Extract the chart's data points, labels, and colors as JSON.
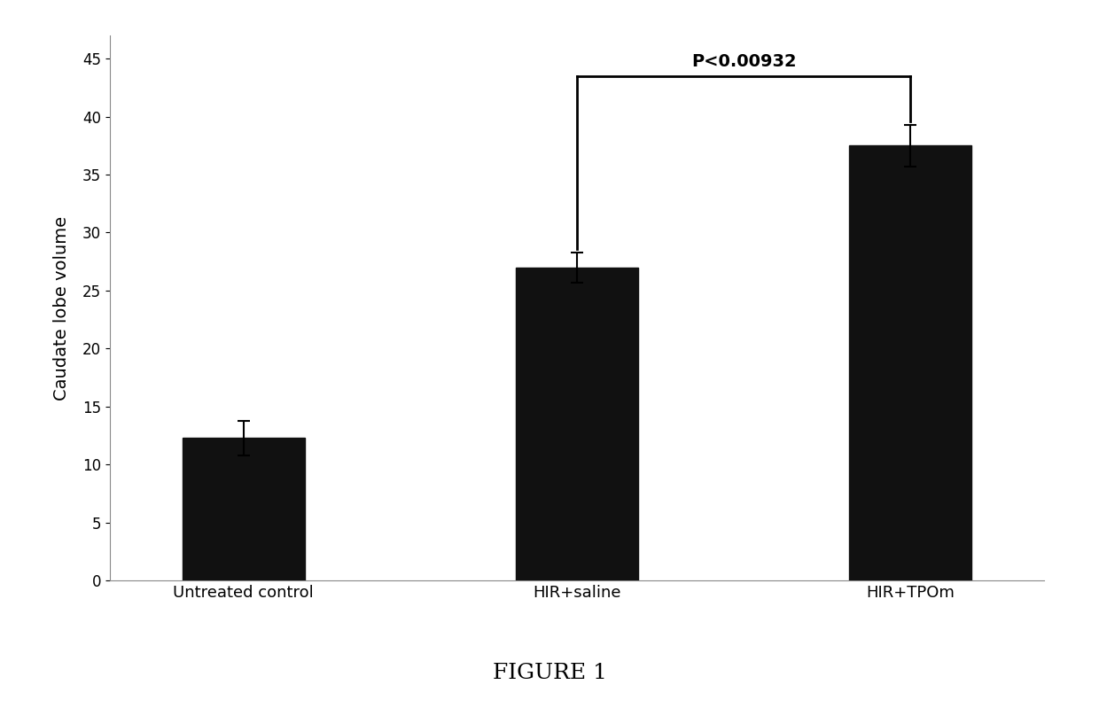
{
  "categories": [
    "Untreated control",
    "HIR+saline",
    "HIR+TPOm"
  ],
  "values": [
    12.3,
    27.0,
    37.5
  ],
  "errors": [
    1.5,
    1.3,
    1.8
  ],
  "bar_color": "#111111",
  "bar_width": 0.55,
  "bar_positions": [
    0.5,
    2.0,
    3.5
  ],
  "ylabel": "Caudate lobe volume",
  "ylim": [
    0,
    47
  ],
  "yticks": [
    0,
    5,
    10,
    15,
    20,
    25,
    30,
    35,
    40,
    45
  ],
  "figure_label": "FIGURE 1",
  "pvalue_text": "P<0.00932",
  "background_color": "#ffffff",
  "ylabel_fontsize": 14,
  "xlabel_fontsize": 13,
  "figure_label_fontsize": 18,
  "pvalue_fontsize": 14
}
